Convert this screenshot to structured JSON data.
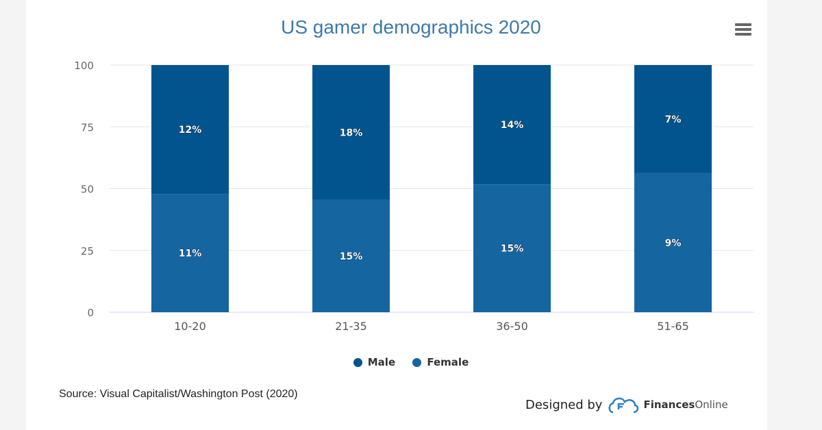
{
  "chart_data": {
    "type": "bar",
    "stacking": "percent",
    "title": "US gamer demographics 2020",
    "categories": [
      "10-20",
      "21-35",
      "36-50",
      "51-65"
    ],
    "series": [
      {
        "name": "Male",
        "values": [
          12,
          18,
          14,
          7
        ],
        "labels": [
          "12%",
          "18%",
          "14%",
          "7%"
        ],
        "color": "#02548e"
      },
      {
        "name": "Female",
        "values": [
          11,
          15,
          15,
          9
        ],
        "labels": [
          "11%",
          "15%",
          "15%",
          "9%"
        ],
        "color": "#1565a0"
      }
    ],
    "yticks": [
      "0",
      "25",
      "50",
      "75",
      "100"
    ],
    "ylim": [
      0,
      100
    ],
    "grid": true,
    "legend": "bottom-center"
  },
  "source": "Source: Visual Capitalist/Washington Post (2020)",
  "credit": {
    "prefix": "Designed by",
    "brand_a": "Finances",
    "brand_b": "Online"
  }
}
